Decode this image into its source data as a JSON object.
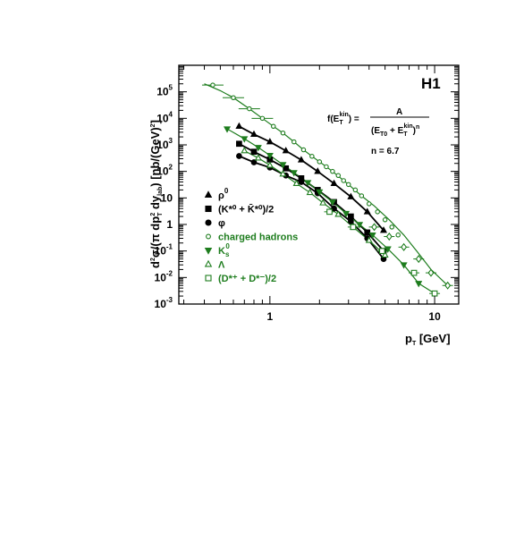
{
  "colors": {
    "black": "#000000",
    "green": "#1e7d1e"
  },
  "chart_data": {
    "type": "scatter",
    "experiment_label": "H1",
    "xlabel": "p_T [GeV]",
    "ylabel": "d²σ/(π dp_T² dy_lab) [nb/(GeV)²]",
    "xscale": "log",
    "yscale": "log",
    "xlim": [
      0.28,
      14
    ],
    "ylim": [
      0.001,
      1000000
    ],
    "x_ticks": [
      {
        "value": 1,
        "label": "1"
      },
      {
        "value": 10,
        "label": "10"
      }
    ],
    "y_ticks": [
      {
        "value": 100000,
        "base": "10",
        "exp": "5"
      },
      {
        "value": 10000,
        "base": "10",
        "exp": "4"
      },
      {
        "value": 1000,
        "base": "10",
        "exp": "3"
      },
      {
        "value": 100,
        "base": "10",
        "exp": "2"
      },
      {
        "value": 10,
        "base": "10",
        "exp": ""
      },
      {
        "value": 1,
        "base": "1",
        "exp": ""
      },
      {
        "value": 0.1,
        "base": "10",
        "exp": "-1"
      },
      {
        "value": 0.01,
        "base": "10",
        "exp": "-2"
      },
      {
        "value": 0.001,
        "base": "10",
        "exp": "-3"
      }
    ],
    "formula": {
      "lhs": "f(E",
      "lhs_sub": "T",
      "lhs_sup": "kin",
      "lhs_close": ") =",
      "numerator": "A",
      "denominator": "(E",
      "denominator_sub0": "T0",
      "denominator_mid": " + E",
      "denominator_sub1": "T",
      "denominator_sup1": "kin",
      "denominator_close": ")",
      "denominator_exp": "n",
      "n_value": "n = 6.7"
    },
    "legend_position": "left-center",
    "series": [
      {
        "name": "ρ⁰",
        "legend_main": "ρ",
        "legend_sup": "0",
        "color": "black",
        "marker": "triangle-up-filled",
        "x": [
          0.65,
          0.8,
          1.0,
          1.25,
          1.55,
          1.95,
          2.45,
          3.1,
          3.9,
          4.9
        ],
        "y": [
          5000,
          2500,
          1300,
          600,
          270,
          100,
          35,
          11,
          3,
          0.6
        ]
      },
      {
        "name": "(K*⁰ + K̄*⁰)/2",
        "legend_main": "(K*⁰ + K̄*⁰)/2",
        "legend_sup": "",
        "color": "black",
        "marker": "square-filled",
        "x": [
          0.65,
          0.8,
          1.0,
          1.25,
          1.55,
          1.95,
          2.45,
          3.1,
          3.9,
          4.9
        ],
        "y": [
          1100,
          550,
          280,
          130,
          55,
          20,
          7,
          2,
          0.5,
          0.1
        ]
      },
      {
        "name": "φ",
        "legend_main": "φ",
        "legend_sup": "",
        "color": "black",
        "marker": "circle-filled",
        "x": [
          0.65,
          0.8,
          1.0,
          1.25,
          1.55,
          1.95,
          2.45,
          3.1,
          3.9,
          4.9
        ],
        "y": [
          380,
          220,
          140,
          70,
          40,
          15,
          4,
          1.3,
          0.3,
          0.05
        ]
      },
      {
        "name": "charged hadrons",
        "legend_main": "charged hadrons",
        "legend_sup": "",
        "color": "green",
        "marker": "circle-open",
        "x": [
          0.45,
          0.6,
          0.75,
          0.9,
          1.05,
          1.2,
          1.4,
          1.6,
          1.8,
          2.0,
          2.2,
          2.4,
          2.6,
          2.8,
          3.0,
          3.3,
          3.6,
          4.0,
          4.5,
          5.0,
          5.5,
          6.0
        ],
        "y": [
          180000,
          60000,
          23000,
          10000,
          5000,
          2800,
          1300,
          650,
          370,
          230,
          150,
          100,
          70,
          45,
          32,
          20,
          12,
          6,
          3,
          1.5,
          0.8,
          0.4
        ]
      },
      {
        "name": "K⁰ₛ",
        "legend_main": "K",
        "legend_sup": "0",
        "legend_sub": "s",
        "color": "green",
        "marker": "triangle-down-filled",
        "x": [
          0.55,
          0.7,
          0.85,
          1.0,
          1.2,
          1.4,
          1.7,
          2.0,
          2.4,
          2.9,
          3.5,
          4.2,
          5.2,
          6.5,
          8.0
        ],
        "y": [
          4000,
          1700,
          800,
          400,
          180,
          90,
          38,
          17,
          7,
          2.6,
          1,
          0.4,
          0.12,
          0.03,
          0.006
        ]
      },
      {
        "name": "Λ",
        "legend_main": "Λ",
        "legend_sup": "",
        "color": "green",
        "marker": "triangle-up-open",
        "x": [
          0.7,
          0.85,
          1.0,
          1.2,
          1.45,
          1.75,
          2.1,
          2.6,
          3.2,
          4.0,
          5.0
        ],
        "y": [
          600,
          320,
          170,
          80,
          35,
          16,
          6.5,
          2.4,
          0.8,
          0.25,
          0.07
        ]
      },
      {
        "name": "(D*⁺ + D*⁻)/2",
        "legend_main": "(D*⁺ + D*⁻)/2",
        "legend_sup": "",
        "color": "green",
        "marker": "square-open",
        "x": [
          2.3,
          3.2,
          4.8,
          7.5,
          10.0
        ],
        "y": [
          3.0,
          0.8,
          0.1,
          0.015,
          0.0025
        ]
      },
      {
        "name": "",
        "color": "green",
        "marker": "diamond-open",
        "x": [
          4.3,
          5.3,
          6.5,
          8.0,
          9.5,
          12.0
        ],
        "y": [
          0.8,
          0.35,
          0.14,
          0.05,
          0.015,
          0.005
        ]
      }
    ],
    "fits": [
      {
        "color": "black",
        "x": [
          0.65,
          0.8,
          1.0,
          1.25,
          1.55,
          1.95,
          2.45,
          3.1,
          3.9,
          4.9
        ],
        "y": [
          5000,
          2500,
          1300,
          600,
          270,
          100,
          35,
          11,
          3,
          0.6
        ]
      },
      {
        "color": "black",
        "x": [
          0.65,
          0.8,
          1.0,
          1.25,
          1.55,
          1.95,
          2.45,
          3.1,
          3.9,
          4.9
        ],
        "y": [
          1100,
          550,
          280,
          130,
          55,
          20,
          7,
          2,
          0.5,
          0.1
        ]
      },
      {
        "color": "black",
        "x": [
          0.65,
          0.8,
          1.0,
          1.25,
          1.55,
          1.95,
          2.45,
          3.1,
          3.9,
          4.9
        ],
        "y": [
          380,
          220,
          140,
          70,
          40,
          15,
          4,
          1.3,
          0.3,
          0.05
        ]
      },
      {
        "color": "green",
        "x": [
          0.4,
          0.5,
          0.6,
          0.75,
          0.9,
          1.05,
          1.2,
          1.4,
          1.6,
          1.8,
          2.0,
          2.4,
          3.0,
          3.6,
          4.3,
          5.3,
          6.5,
          8.0,
          9.5,
          12.0
        ],
        "y": [
          200000,
          110000,
          60000,
          23000,
          10000,
          5000,
          2800,
          1300,
          650,
          370,
          230,
          100,
          32,
          12,
          5,
          1.5,
          0.4,
          0.08,
          0.02,
          0.005
        ]
      },
      {
        "color": "green",
        "x": [
          0.55,
          0.7,
          0.85,
          1.0,
          1.2,
          1.4,
          1.7,
          2.0,
          2.4,
          2.9,
          3.5,
          4.2,
          5.2,
          6.5,
          8.0,
          10.0
        ],
        "y": [
          4000,
          1700,
          800,
          400,
          180,
          90,
          38,
          17,
          7,
          2.6,
          1,
          0.4,
          0.12,
          0.03,
          0.006,
          0.0025
        ]
      },
      {
        "color": "green",
        "x": [
          0.7,
          0.85,
          1.0,
          1.2,
          1.45,
          1.75,
          2.1,
          2.6,
          3.2,
          4.0,
          5.0
        ],
        "y": [
          600,
          320,
          170,
          80,
          35,
          16,
          6.5,
          2.4,
          0.8,
          0.25,
          0.07
        ]
      }
    ]
  }
}
